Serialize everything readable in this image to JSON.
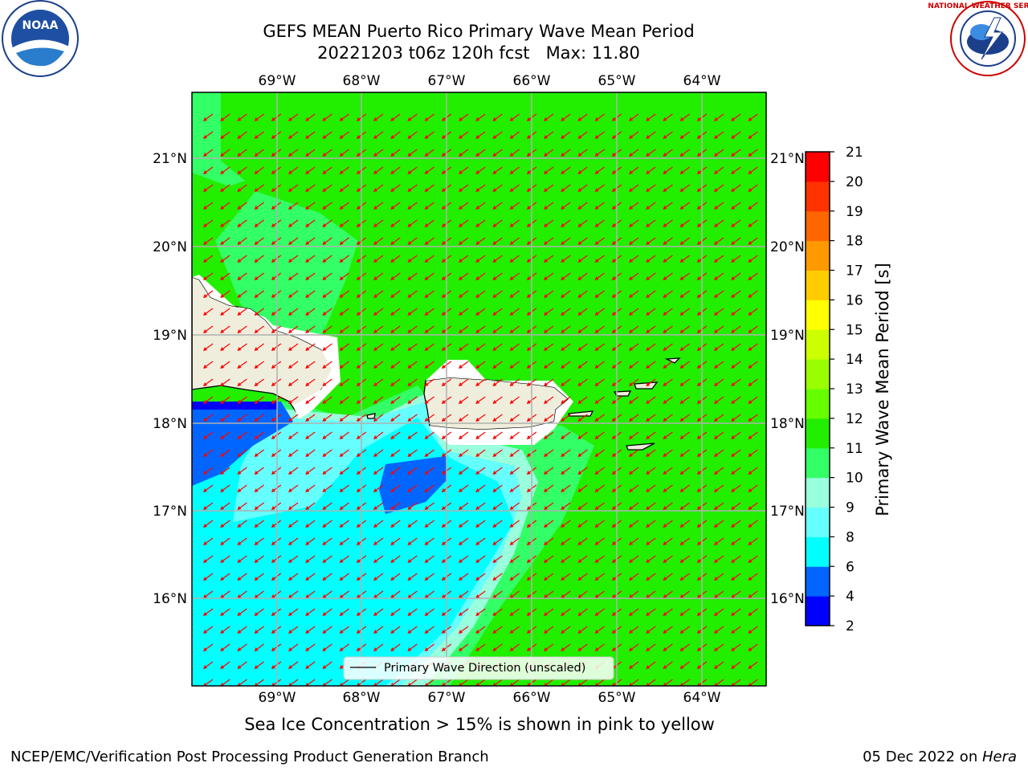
{
  "title": "GEFS MEAN Puerto Rico Primary Wave Mean Period",
  "subtitle": "20221203 t06z 120h fcst   Max: 11.80",
  "lon_ticks": [
    "69°W",
    "68°W",
    "67°W",
    "66°W",
    "65°W",
    "64°W"
  ],
  "lat_ticks": [
    "21°N",
    "20°N",
    "19°N",
    "18°N",
    "17°N",
    "16°N"
  ],
  "colorbar": {
    "label": "Primary Wave Mean Period [s]",
    "ticks": [
      "2",
      "4",
      "6",
      "8",
      "9",
      "10",
      "11",
      "12",
      "13",
      "14",
      "15",
      "16",
      "17",
      "18",
      "19",
      "20",
      "21"
    ],
    "colors": [
      "#0000ff",
      "#0066ff",
      "#00ffff",
      "#66ffff",
      "#99ffdd",
      "#33ff66",
      "#22ee00",
      "#66ff00",
      "#99ff00",
      "#ccff00",
      "#ffff00",
      "#ffcc00",
      "#ff9900",
      "#ff6600",
      "#ff3300",
      "#ff0000"
    ]
  },
  "legend": {
    "label": "Primary Wave Direction (unscaled)"
  },
  "footer_note": "Sea Ice Concentration > 15% is shown in pink to yellow",
  "credit_left": "NCEP/EMC/Verification Post Processing Product Generation Branch",
  "credit_right_prefix": "05 Dec 2022 on ",
  "credit_right_host": "Hera",
  "logos": {
    "left": "NOAA",
    "right": "NATIONAL WEATHER SERVICE"
  },
  "map_colors": {
    "land": "#efeedc",
    "ocean_main": "#22ee00",
    "arrow": "#ff0000"
  }
}
